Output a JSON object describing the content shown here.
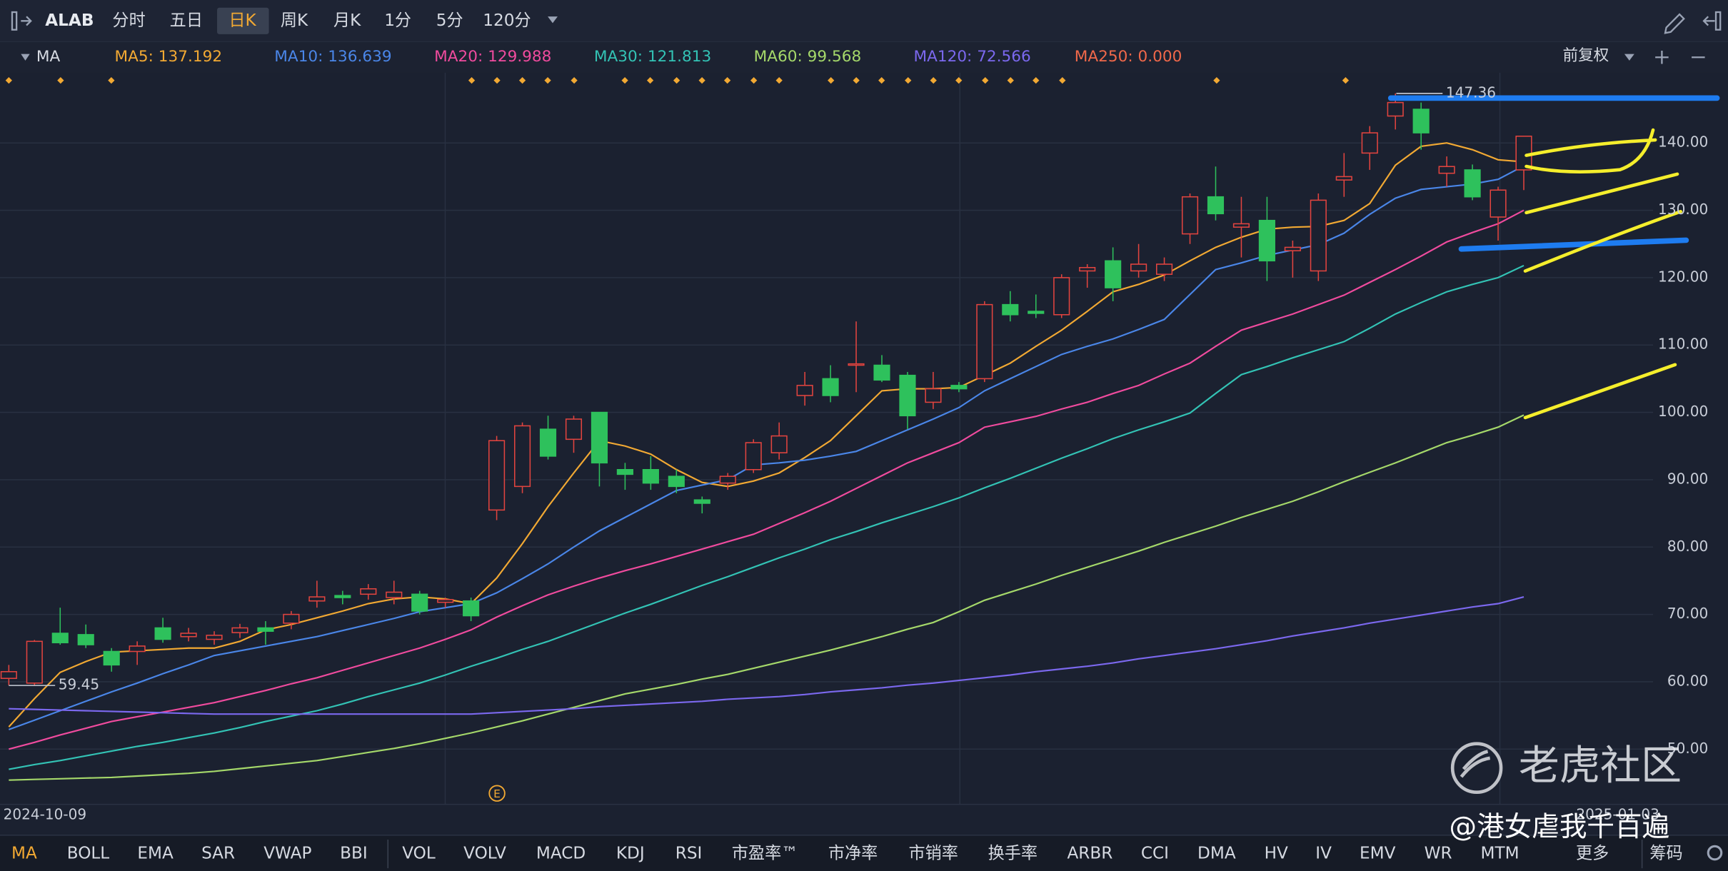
{
  "toolbar": {
    "symbol": "ALAB",
    "periods": [
      {
        "label": "分时"
      },
      {
        "label": "五日"
      },
      {
        "label": "日K",
        "active": true
      },
      {
        "label": "周K"
      },
      {
        "label": "月K"
      },
      {
        "label": "1分"
      },
      {
        "label": "5分"
      },
      {
        "label": "120分"
      }
    ]
  },
  "indicator_bar": {
    "name": "MA",
    "adjust": "前复权",
    "extra_legend": {
      "name": "MA250: 0.000",
      "color": "#f0684a"
    }
  },
  "chart_data": {
    "type": "candlestick",
    "categories": [
      "2024-10-09",
      null,
      null,
      null,
      null,
      null,
      null,
      null,
      null,
      null,
      null,
      null,
      null,
      null,
      null,
      null,
      null,
      null,
      null,
      null,
      null,
      null,
      null,
      null,
      null,
      null,
      null,
      null,
      null,
      null,
      null,
      null,
      null,
      null,
      null,
      null,
      null,
      null,
      null,
      null,
      null,
      null,
      null,
      null,
      null,
      null,
      null,
      null,
      null,
      null,
      null,
      null,
      null,
      null,
      null,
      null,
      null,
      null,
      "2025-01-03",
      null
    ],
    "open": [
      60.5,
      59.8,
      67.2,
      67,
      64.5,
      64.5,
      68,
      66.7,
      66.3,
      67.3,
      68,
      68.7,
      72,
      72.8,
      73,
      72.5,
      73,
      71.8,
      72,
      85.5,
      89,
      97.5,
      96,
      100,
      91.5,
      91.5,
      90.5,
      87,
      89.5,
      91.5,
      94,
      102.5,
      105,
      107,
      107,
      105.5,
      101.5,
      104,
      105,
      116,
      115,
      114.5,
      121,
      122.5,
      121,
      120.5,
      126.5,
      132,
      127.5,
      128.5,
      124,
      121,
      134.5,
      138.5,
      144,
      145,
      135.5,
      136,
      129,
      136
    ],
    "high": [
      62.5,
      66.2,
      71,
      68.5,
      65,
      66,
      69.5,
      68,
      67.5,
      68.6,
      69,
      70.5,
      75,
      73.5,
      74.5,
      75,
      73.5,
      72.5,
      72.5,
      96.5,
      98.5,
      99.5,
      99.5,
      100,
      92.5,
      93.5,
      91.5,
      87.5,
      91,
      96,
      98.5,
      106,
      107,
      113.5,
      108.5,
      106,
      106,
      104.5,
      116.5,
      118,
      117.5,
      120.5,
      122,
      124.5,
      125,
      123,
      132.5,
      136.5,
      132,
      132,
      125.5,
      132.5,
      138.5,
      142.5,
      147.36,
      146,
      138,
      136.8,
      133.5,
      141
    ],
    "low": [
      59.5,
      59.45,
      65.5,
      65,
      61.5,
      62.5,
      65.8,
      66,
      65.5,
      66.5,
      65.5,
      67.8,
      71,
      71.5,
      72.2,
      71.5,
      70,
      71,
      69,
      84,
      88,
      93,
      94,
      89,
      88.5,
      88.5,
      88,
      85,
      88.5,
      91,
      93,
      101,
      101.5,
      103,
      104.5,
      97.5,
      100.5,
      103,
      104.5,
      113.5,
      114,
      114,
      118.5,
      116.5,
      120,
      119.5,
      125,
      128.5,
      123,
      119.5,
      120,
      119.5,
      132,
      136,
      142,
      139,
      133.5,
      131.5,
      125.5,
      133
    ],
    "close": [
      61.5,
      66,
      65.8,
      65.5,
      62.5,
      65.3,
      66.3,
      67.2,
      66.9,
      68,
      67.5,
      70,
      72.6,
      72.5,
      73.8,
      73.3,
      70.5,
      72.2,
      69.8,
      95.8,
      98,
      93.5,
      99,
      92.5,
      90.8,
      89.5,
      89,
      86.5,
      90.5,
      95.5,
      96.5,
      104,
      102.5,
      107.2,
      104.8,
      99.5,
      103.5,
      103.5,
      116,
      114.5,
      114.7,
      120,
      121.5,
      118.5,
      122,
      122,
      132,
      129.5,
      128,
      122.5,
      124.5,
      131.5,
      135,
      141.5,
      146,
      141.5,
      136.5,
      132,
      133,
      141
    ],
    "up_color": "#e2443f",
    "down_color": "#2ec15c",
    "series": [
      {
        "name": "MA5: 137.192",
        "color": "#f2a933",
        "values": [
          53.3,
          57.5,
          61.4,
          63,
          64.4,
          64.6,
          64.8,
          65,
          65,
          66,
          67.7,
          68.5,
          69.5,
          70.5,
          71.6,
          72.3,
          72.6,
          72.3,
          71.6,
          75.4,
          80.5,
          86,
          91,
          95.8,
          95,
          93.8,
          91.5,
          89.6,
          89,
          89.8,
          91,
          93.3,
          95.8,
          99.5,
          103.2,
          103.5,
          103.5,
          103.7,
          105.5,
          107.3,
          109.8,
          112.2,
          115,
          117.9,
          119,
          120.4,
          122.5,
          124.5,
          126,
          127.2,
          127.5,
          127.6,
          128.5,
          131,
          136.7,
          139.5,
          140,
          139,
          137.5,
          137.2
        ]
      },
      {
        "name": "MA10: 136.639",
        "color": "#4a86e8",
        "values": [
          52.9,
          54.3,
          55.7,
          57.1,
          58.5,
          59.8,
          61.2,
          62.5,
          63.9,
          64.6,
          65.3,
          66,
          66.7,
          67.6,
          68.5,
          69.4,
          70.4,
          71,
          71.6,
          73.2,
          75.3,
          77.5,
          80,
          82.4,
          84.4,
          86.4,
          88.4,
          89.2,
          90,
          92.2,
          92.5,
          92.9,
          93.5,
          94.2,
          95.8,
          97.4,
          99,
          100.7,
          103.2,
          105,
          106.8,
          108.6,
          109.8,
          110.9,
          112.3,
          113.8,
          117.5,
          121.2,
          122.2,
          123.3,
          124.1,
          124.9,
          126.6,
          129.4,
          131.8,
          133.1,
          133.5,
          133.9,
          134.6,
          136.6
        ]
      },
      {
        "name": "MA20: 129.988",
        "color": "#f04b9e",
        "values": [
          50,
          51,
          52.1,
          53.1,
          54.1,
          54.8,
          55.5,
          56.2,
          56.9,
          57.8,
          58.7,
          59.7,
          60.6,
          61.7,
          62.8,
          63.9,
          65,
          66.3,
          67.7,
          69.6,
          71.3,
          72.9,
          74.2,
          75.4,
          76.5,
          77.5,
          78.6,
          79.7,
          80.8,
          81.9,
          83.5,
          85.1,
          86.8,
          88.7,
          90.6,
          92.5,
          94,
          95.5,
          97.8,
          98.6,
          99.4,
          100.5,
          101.5,
          102.8,
          104,
          105.7,
          107.3,
          109.8,
          112.2,
          113.4,
          114.6,
          116,
          117.4,
          119.3,
          121.2,
          123.2,
          125.3,
          126.7,
          128,
          130
        ]
      },
      {
        "name": "MA30: 121.813",
        "color": "#33c3b5",
        "values": [
          47,
          47.7,
          48.3,
          49,
          49.7,
          50.4,
          51,
          51.7,
          52.4,
          53.2,
          54.1,
          54.9,
          55.7,
          56.7,
          57.8,
          58.8,
          59.8,
          61,
          62.3,
          63.5,
          64.8,
          66,
          67.4,
          68.8,
          70.2,
          71.5,
          72.9,
          74.3,
          75.6,
          77,
          78.4,
          79.7,
          81.1,
          82.3,
          83.6,
          84.8,
          86,
          87.3,
          88.8,
          90.2,
          91.7,
          93.2,
          94.6,
          96.1,
          97.4,
          98.6,
          99.9,
          102.8,
          105.6,
          106.8,
          108.1,
          109.3,
          110.5,
          112.5,
          114.6,
          116.3,
          117.9,
          119,
          120,
          121.8
        ]
      },
      {
        "name": "MA60: 99.568",
        "color": "#a5d86a",
        "values": [
          45.4,
          45.5,
          45.6,
          45.7,
          45.8,
          46,
          46.2,
          46.4,
          46.7,
          47.1,
          47.5,
          47.9,
          48.3,
          48.9,
          49.5,
          50.1,
          50.8,
          51.6,
          52.4,
          53.3,
          54.2,
          55.2,
          56.2,
          57.2,
          58.2,
          58.9,
          59.6,
          60.4,
          61.1,
          62,
          62.9,
          63.8,
          64.7,
          65.7,
          66.7,
          67.8,
          68.8,
          70.4,
          72.1,
          73.3,
          74.5,
          75.8,
          77,
          78.2,
          79.4,
          80.7,
          81.9,
          83.1,
          84.4,
          85.6,
          86.8,
          88.2,
          89.7,
          91.1,
          92.5,
          94,
          95.5,
          96.6,
          97.8,
          99.6
        ]
      },
      {
        "name": "MA120: 72.566",
        "color": "#7b68ee",
        "values": [
          56,
          55.9,
          55.8,
          55.7,
          55.6,
          55.5,
          55.4,
          55.3,
          55.2,
          55.2,
          55.2,
          55.2,
          55.2,
          55.2,
          55.2,
          55.2,
          55.2,
          55.2,
          55.2,
          55.4,
          55.6,
          55.8,
          56,
          56.3,
          56.5,
          56.7,
          56.9,
          57.1,
          57.4,
          57.6,
          57.8,
          58.1,
          58.5,
          58.8,
          59.1,
          59.5,
          59.8,
          60.2,
          60.6,
          61,
          61.5,
          61.9,
          62.3,
          62.8,
          63.4,
          63.9,
          64.4,
          64.9,
          65.5,
          66.1,
          66.8,
          67.4,
          68,
          68.7,
          69.3,
          69.9,
          70.5,
          71.1,
          71.6,
          72.6
        ]
      }
    ],
    "ylim": [
      41.8,
      150.1
    ],
    "yticks": [
      {
        "value": 50,
        "label": "50.00"
      },
      {
        "value": 60,
        "label": "60.00"
      },
      {
        "value": 70,
        "label": "70.00"
      },
      {
        "value": 80,
        "label": "80.00"
      },
      {
        "value": 90,
        "label": "90.00"
      },
      {
        "value": 100,
        "label": "100.00"
      },
      {
        "value": 110,
        "label": "110.00"
      },
      {
        "value": 120,
        "label": "120.00"
      },
      {
        "value": 130,
        "label": "130.00"
      },
      {
        "value": 140,
        "label": "140.00"
      }
    ],
    "grid": true,
    "price_marks": [
      147.36,
      59.45
    ],
    "event_label": "E"
  },
  "bottom_tabs": [
    {
      "label": "MA",
      "active": true
    },
    {
      "label": "BOLL"
    },
    {
      "label": "EMA"
    },
    {
      "label": "SAR"
    },
    {
      "label": "VWAP"
    },
    {
      "label": "BBI"
    },
    {
      "label": "VOL"
    },
    {
      "label": "VOLV"
    },
    {
      "label": "MACD"
    },
    {
      "label": "KDJ"
    },
    {
      "label": "RSI"
    },
    {
      "label": "市盈率™"
    },
    {
      "label": "市净率"
    },
    {
      "label": "市销率"
    },
    {
      "label": "换手率"
    },
    {
      "label": "ARBR"
    },
    {
      "label": "CCI"
    },
    {
      "label": "DMA"
    },
    {
      "label": "HV"
    },
    {
      "label": "IV"
    },
    {
      "label": "EMV"
    },
    {
      "label": "WR"
    },
    {
      "label": "MTM"
    },
    {
      "label": "更多"
    },
    {
      "label": "筹码"
    }
  ],
  "watermark": {
    "brand": "老虎社区",
    "user": "@港女虐我千百遍"
  }
}
